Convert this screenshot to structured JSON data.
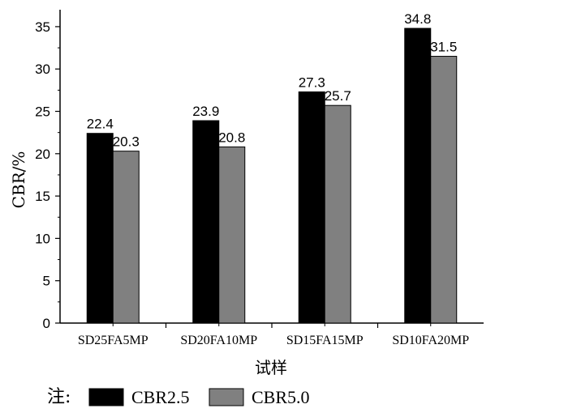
{
  "chart_data": {
    "type": "bar",
    "categories": [
      "SD25FA5MP",
      "SD20FA10MP",
      "SD15FA15MP",
      "SD10FA20MP"
    ],
    "series": [
      {
        "name": "CBR2.5",
        "values": [
          22.4,
          23.9,
          27.3,
          34.8
        ],
        "color": "#000000"
      },
      {
        "name": "CBR5.0",
        "values": [
          20.3,
          20.8,
          25.7,
          31.5
        ],
        "color": "#808080"
      }
    ],
    "data_labels": [
      [
        "22.4",
        "23.9",
        "27.3",
        "34.8"
      ],
      [
        "20.3",
        "20.8",
        "25.7",
        "31.5"
      ]
    ],
    "xlabel": "试样",
    "ylabel": "CBR/%",
    "ylim": [
      0,
      37
    ],
    "yticks": [
      0,
      5,
      10,
      15,
      20,
      25,
      30,
      35
    ],
    "legend": {
      "note": "注:",
      "placement": "bottom"
    },
    "grid": false
  }
}
